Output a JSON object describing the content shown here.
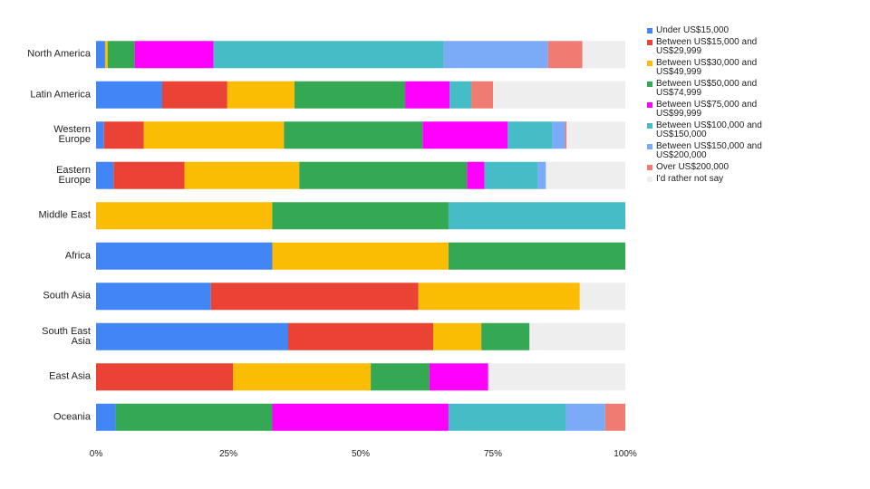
{
  "chart_data": {
    "type": "stacked-bar-horizontal",
    "categories": [
      "North America",
      "Latin America",
      "Western Europe",
      "Eastern Europe",
      "Middle East",
      "Africa",
      "South Asia",
      "South East Asia",
      "East Asia",
      "Oceania"
    ],
    "series": [
      {
        "name": "Under US$15,000",
        "color": "#4285f4",
        "values": [
          1.7,
          12.5,
          1.5,
          3.3,
          0,
          33.3,
          21.7,
          36.3,
          0,
          3.7
        ]
      },
      {
        "name": "Between US$15,000 and US$29,999",
        "color": "#ea4335",
        "values": [
          0,
          12.3,
          7.5,
          13.4,
          0,
          0,
          39.2,
          27.4,
          25.9,
          0
        ]
      },
      {
        "name": "Between US$30,000 and US$49,999",
        "color": "#fbbc04",
        "values": [
          0.5,
          12.7,
          26.5,
          21.7,
          33.3,
          33.3,
          30.5,
          9.1,
          26.0,
          0
        ]
      },
      {
        "name": "Between US$50,000 and US$74,999",
        "color": "#34a853",
        "values": [
          5.1,
          20.9,
          26.2,
          31.7,
          33.3,
          33.4,
          0,
          9.1,
          11.1,
          29.6
        ]
      },
      {
        "name": "Between US$75,000 and US$99,999",
        "color": "#ff00ff",
        "values": [
          14.9,
          8.4,
          16.1,
          3.3,
          0,
          0,
          0,
          0,
          11.1,
          33.3
        ]
      },
      {
        "name": "Between US$100,000 and US$150,000",
        "color": "#46bdc6",
        "values": [
          43.5,
          4.1,
          8.4,
          10.1,
          33.4,
          0,
          0,
          0,
          0,
          22.2
        ]
      },
      {
        "name": "Between US$150,000 and US$200,000",
        "color": "#7baaf7",
        "values": [
          19.7,
          0,
          2.4,
          1.5,
          0,
          0,
          0,
          0,
          0,
          7.4
        ]
      },
      {
        "name": "Over US$200,000",
        "color": "#f07b72",
        "values": [
          6.5,
          4.1,
          0.3,
          0,
          0,
          0,
          0,
          0,
          0,
          3.8
        ]
      },
      {
        "name": "I'd rather not say",
        "color": "#eeeeee",
        "values": [
          8.1,
          25.0,
          11.1,
          15.0,
          0,
          0,
          8.6,
          18.1,
          25.9,
          0
        ]
      }
    ],
    "xlim": [
      0,
      100
    ],
    "xticks": [
      {
        "value": 0,
        "label": "0%"
      },
      {
        "value": 25,
        "label": "25%"
      },
      {
        "value": 50,
        "label": "50%"
      },
      {
        "value": 75,
        "label": "75%"
      },
      {
        "value": 100,
        "label": "100%"
      }
    ],
    "legend": "right"
  }
}
